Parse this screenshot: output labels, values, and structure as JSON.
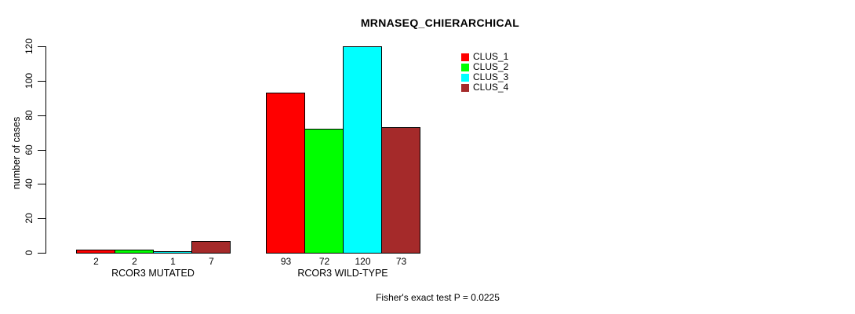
{
  "chart_data": {
    "type": "bar",
    "title": "MRNASEQ_CHIERARCHICAL",
    "ylabel": "number of cases",
    "xlabel": "",
    "ylim": [
      0,
      120
    ],
    "yticks": [
      0,
      20,
      40,
      60,
      80,
      100,
      120
    ],
    "grid": false,
    "legend_position": "top-right",
    "bar_value_labels_shown": true,
    "annotation": "Fisher's exact test P = 0.0225",
    "categories": [
      "RCOR3 MUTATED",
      "RCOR3 WILD-TYPE"
    ],
    "series": [
      {
        "name": "CLUS_1",
        "color": "#ff0000",
        "values": [
          2,
          93
        ]
      },
      {
        "name": "CLUS_2",
        "color": "#00ff00",
        "values": [
          2,
          72
        ]
      },
      {
        "name": "CLUS_3",
        "color": "#00ffff",
        "values": [
          1,
          120
        ]
      },
      {
        "name": "CLUS_4",
        "color": "#a52a2a",
        "values": [
          7,
          73
        ]
      }
    ]
  },
  "colors": {
    "background": "#ffffff",
    "axis": "#000000",
    "text": "#000000",
    "bar_border": "#000000"
  }
}
